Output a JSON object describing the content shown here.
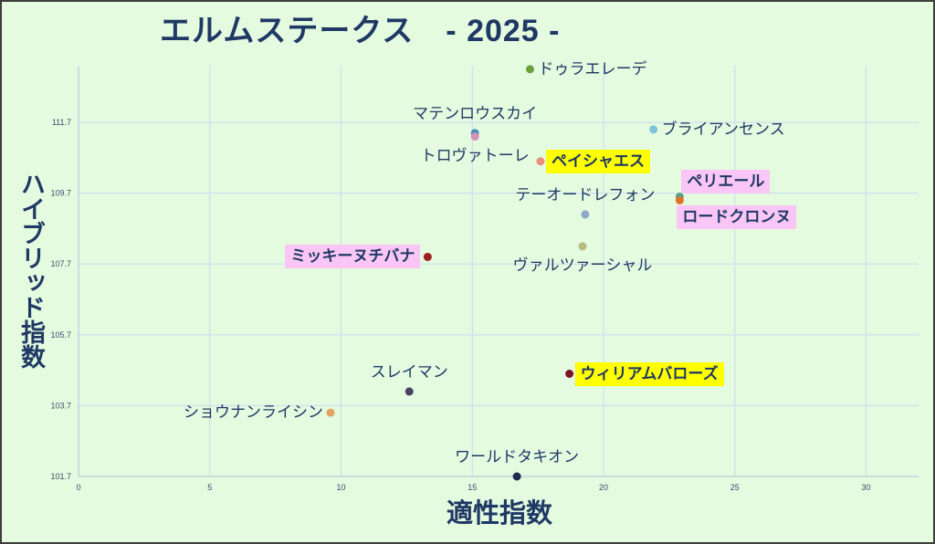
{
  "chart_data": {
    "type": "scatter",
    "title": "エルムステークス　- 2025 -",
    "xlabel": "適性指数",
    "ylabel": "ハイブリッド指数",
    "xlim": [
      0,
      32
    ],
    "ylim": [
      101.7,
      113.3
    ],
    "x_ticks": [
      0,
      5,
      10,
      15,
      20,
      25,
      30
    ],
    "y_ticks": [
      101.7,
      103.7,
      105.7,
      107.7,
      109.7,
      111.7
    ],
    "grid": true,
    "points": [
      {
        "label": "ドゥラエレーデ",
        "x": 17.2,
        "y": 113.2,
        "color": "#6b9e3c"
      },
      {
        "label": "マテンロウスカイ",
        "x": 15.1,
        "y": 111.4,
        "color": "#4a8fb8"
      },
      {
        "label": "トロヴァトーレ",
        "x": 15.1,
        "y": 111.3,
        "color": "#d68fb6"
      },
      {
        "label": "ペイシャエス",
        "x": 17.6,
        "y": 110.6,
        "color": "#e8907c",
        "highlight": "#ffff00"
      },
      {
        "label": "ブライアンセンス",
        "x": 21.9,
        "y": 111.5,
        "color": "#7ec3d6"
      },
      {
        "label": "ペリエール",
        "x": 22.9,
        "y": 109.6,
        "color": "#4fa38c",
        "highlight": "#f9c6f5"
      },
      {
        "label": "ロードクロンヌ",
        "x": 22.9,
        "y": 109.5,
        "color": "#e07328",
        "highlight": "#f9c6f5"
      },
      {
        "label": "テーオードレフォン",
        "x": 19.3,
        "y": 109.1,
        "color": "#8ea9cc"
      },
      {
        "label": "ヴァルツァーシャル",
        "x": 19.2,
        "y": 108.2,
        "color": "#b9bc82"
      },
      {
        "label": "ミッキーヌチバナ",
        "x": 13.3,
        "y": 107.9,
        "color": "#9c1d1d",
        "highlight": "#f9c6f5"
      },
      {
        "label": "スレイマン",
        "x": 12.6,
        "y": 104.1,
        "color": "#4a4262"
      },
      {
        "label": "ウィリアムバローズ",
        "x": 18.7,
        "y": 104.6,
        "color": "#7b1329",
        "highlight": "#ffff00"
      },
      {
        "label": "ショウナンライシン",
        "x": 9.6,
        "y": 103.5,
        "color": "#e7a35e"
      },
      {
        "label": "ワールドタキオン",
        "x": 16.7,
        "y": 101.7,
        "color": "#1e2a4d"
      }
    ]
  },
  "colors": {
    "background": "#e4fbe0",
    "text": "#1f3864",
    "grid": "#cdd8f0"
  }
}
